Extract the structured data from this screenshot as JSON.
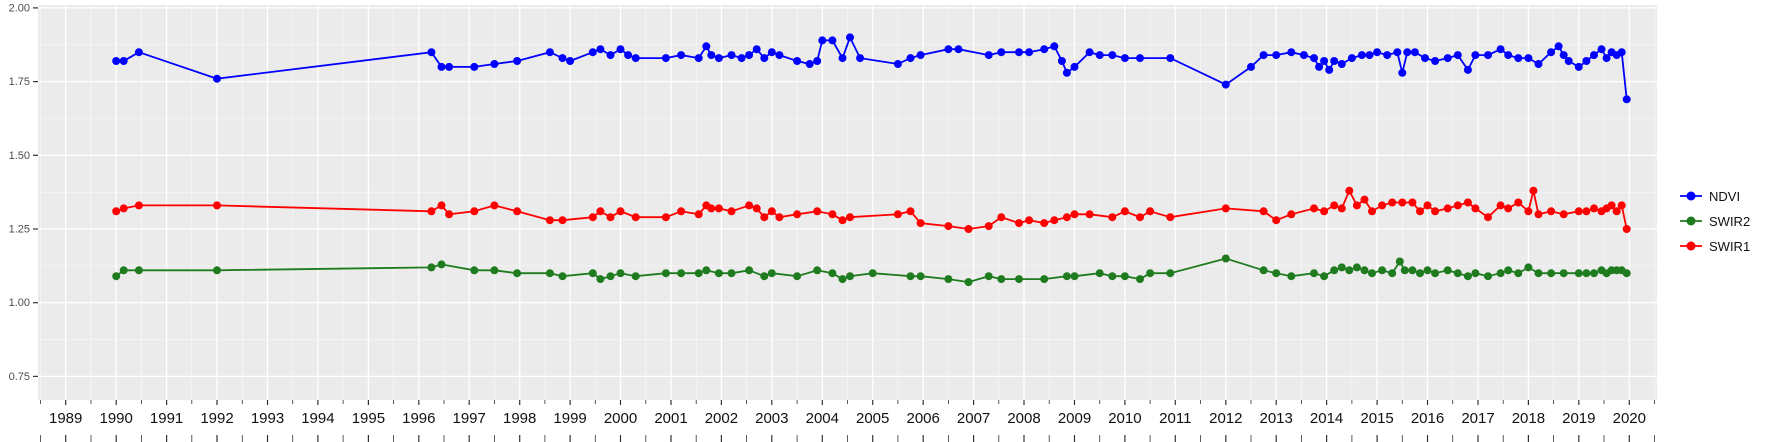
{
  "chart_data": {
    "type": "line",
    "title": "",
    "xlabel": "",
    "ylabel": "",
    "xlim": [
      1988.45,
      2020.55
    ],
    "ylim": [
      0.67,
      2.01
    ],
    "x_ticks": [
      1989,
      1990,
      1991,
      1992,
      1993,
      1994,
      1995,
      1996,
      1997,
      1998,
      1999,
      2000,
      2001,
      2002,
      2003,
      2004,
      2005,
      2006,
      2007,
      2008,
      2009,
      2010,
      2011,
      2012,
      2013,
      2014,
      2015,
      2016,
      2017,
      2018,
      2019,
      2020
    ],
    "y_ticks": [
      0.75,
      1.0,
      1.25,
      1.5,
      1.75,
      2.0
    ],
    "y_tick_labels": [
      "0.75",
      "1.00",
      "1.25",
      "1.50",
      "1.75",
      "2.00"
    ],
    "grid": true,
    "panel_bg": "#EBEBEB",
    "grid_color": "#FFFFFF",
    "legend_position": "right",
    "legend_items": [
      "NDVI",
      "SWIR2",
      "SWIR1"
    ],
    "series": [
      {
        "name": "NDVI",
        "color": "#0000FF",
        "points": [
          [
            1990.0,
            1.82
          ],
          [
            1990.15,
            1.82
          ],
          [
            1990.45,
            1.85
          ],
          [
            1992.0,
            1.76
          ],
          [
            1996.25,
            1.85
          ],
          [
            1996.45,
            1.8
          ],
          [
            1996.6,
            1.8
          ],
          [
            1997.1,
            1.8
          ],
          [
            1997.5,
            1.81
          ],
          [
            1997.95,
            1.82
          ],
          [
            1998.6,
            1.85
          ],
          [
            1998.85,
            1.83
          ],
          [
            1999.0,
            1.82
          ],
          [
            1999.45,
            1.85
          ],
          [
            1999.6,
            1.86
          ],
          [
            1999.8,
            1.84
          ],
          [
            2000.0,
            1.86
          ],
          [
            2000.15,
            1.84
          ],
          [
            2000.3,
            1.83
          ],
          [
            2000.9,
            1.83
          ],
          [
            2001.2,
            1.84
          ],
          [
            2001.55,
            1.83
          ],
          [
            2001.7,
            1.87
          ],
          [
            2001.8,
            1.84
          ],
          [
            2001.95,
            1.83
          ],
          [
            2002.2,
            1.84
          ],
          [
            2002.4,
            1.83
          ],
          [
            2002.55,
            1.84
          ],
          [
            2002.7,
            1.86
          ],
          [
            2002.85,
            1.83
          ],
          [
            2003.0,
            1.85
          ],
          [
            2003.15,
            1.84
          ],
          [
            2003.5,
            1.82
          ],
          [
            2003.75,
            1.81
          ],
          [
            2003.9,
            1.82
          ],
          [
            2004.0,
            1.89
          ],
          [
            2004.2,
            1.89
          ],
          [
            2004.4,
            1.83
          ],
          [
            2004.55,
            1.9
          ],
          [
            2004.75,
            1.83
          ],
          [
            2005.5,
            1.81
          ],
          [
            2005.75,
            1.83
          ],
          [
            2005.95,
            1.84
          ],
          [
            2006.5,
            1.86
          ],
          [
            2006.7,
            1.86
          ],
          [
            2007.3,
            1.84
          ],
          [
            2007.55,
            1.85
          ],
          [
            2007.9,
            1.85
          ],
          [
            2008.1,
            1.85
          ],
          [
            2008.4,
            1.86
          ],
          [
            2008.6,
            1.87
          ],
          [
            2008.75,
            1.82
          ],
          [
            2008.85,
            1.78
          ],
          [
            2009.0,
            1.8
          ],
          [
            2009.3,
            1.85
          ],
          [
            2009.5,
            1.84
          ],
          [
            2009.75,
            1.84
          ],
          [
            2010.0,
            1.83
          ],
          [
            2010.3,
            1.83
          ],
          [
            2010.9,
            1.83
          ],
          [
            2012.0,
            1.74
          ],
          [
            2012.5,
            1.8
          ],
          [
            2012.75,
            1.84
          ],
          [
            2013.0,
            1.84
          ],
          [
            2013.3,
            1.85
          ],
          [
            2013.55,
            1.84
          ],
          [
            2013.75,
            1.83
          ],
          [
            2013.85,
            1.8
          ],
          [
            2013.95,
            1.82
          ],
          [
            2014.05,
            1.79
          ],
          [
            2014.15,
            1.82
          ],
          [
            2014.3,
            1.81
          ],
          [
            2014.5,
            1.83
          ],
          [
            2014.7,
            1.84
          ],
          [
            2014.85,
            1.84
          ],
          [
            2015.0,
            1.85
          ],
          [
            2015.2,
            1.84
          ],
          [
            2015.4,
            1.85
          ],
          [
            2015.5,
            1.78
          ],
          [
            2015.6,
            1.85
          ],
          [
            2015.75,
            1.85
          ],
          [
            2015.95,
            1.83
          ],
          [
            2016.15,
            1.82
          ],
          [
            2016.4,
            1.83
          ],
          [
            2016.6,
            1.84
          ],
          [
            2016.8,
            1.79
          ],
          [
            2016.95,
            1.84
          ],
          [
            2017.2,
            1.84
          ],
          [
            2017.45,
            1.86
          ],
          [
            2017.6,
            1.84
          ],
          [
            2017.8,
            1.83
          ],
          [
            2018.0,
            1.83
          ],
          [
            2018.2,
            1.81
          ],
          [
            2018.45,
            1.85
          ],
          [
            2018.6,
            1.87
          ],
          [
            2018.7,
            1.84
          ],
          [
            2018.8,
            1.82
          ],
          [
            2019.0,
            1.8
          ],
          [
            2019.15,
            1.82
          ],
          [
            2019.3,
            1.84
          ],
          [
            2019.45,
            1.86
          ],
          [
            2019.55,
            1.83
          ],
          [
            2019.65,
            1.85
          ],
          [
            2019.75,
            1.84
          ],
          [
            2019.85,
            1.85
          ],
          [
            2019.95,
            1.69
          ]
        ]
      },
      {
        "name": "SWIR2",
        "color": "#1E7B1E",
        "points": [
          [
            1990.0,
            1.09
          ],
          [
            1990.15,
            1.11
          ],
          [
            1990.45,
            1.11
          ],
          [
            1992.0,
            1.11
          ],
          [
            1996.25,
            1.12
          ],
          [
            1996.45,
            1.13
          ],
          [
            1997.1,
            1.11
          ],
          [
            1997.5,
            1.11
          ],
          [
            1997.95,
            1.1
          ],
          [
            1998.6,
            1.1
          ],
          [
            1998.85,
            1.09
          ],
          [
            1999.45,
            1.1
          ],
          [
            1999.6,
            1.08
          ],
          [
            1999.8,
            1.09
          ],
          [
            2000.0,
            1.1
          ],
          [
            2000.3,
            1.09
          ],
          [
            2000.9,
            1.1
          ],
          [
            2001.2,
            1.1
          ],
          [
            2001.55,
            1.1
          ],
          [
            2001.7,
            1.11
          ],
          [
            2001.95,
            1.1
          ],
          [
            2002.2,
            1.1
          ],
          [
            2002.55,
            1.11
          ],
          [
            2002.85,
            1.09
          ],
          [
            2003.0,
            1.1
          ],
          [
            2003.5,
            1.09
          ],
          [
            2003.9,
            1.11
          ],
          [
            2004.2,
            1.1
          ],
          [
            2004.4,
            1.08
          ],
          [
            2004.55,
            1.09
          ],
          [
            2005.0,
            1.1
          ],
          [
            2005.75,
            1.09
          ],
          [
            2005.95,
            1.09
          ],
          [
            2006.5,
            1.08
          ],
          [
            2006.9,
            1.07
          ],
          [
            2007.3,
            1.09
          ],
          [
            2007.55,
            1.08
          ],
          [
            2007.9,
            1.08
          ],
          [
            2008.4,
            1.08
          ],
          [
            2008.85,
            1.09
          ],
          [
            2009.0,
            1.09
          ],
          [
            2009.5,
            1.1
          ],
          [
            2009.75,
            1.09
          ],
          [
            2010.0,
            1.09
          ],
          [
            2010.3,
            1.08
          ],
          [
            2010.5,
            1.1
          ],
          [
            2010.9,
            1.1
          ],
          [
            2012.0,
            1.15
          ],
          [
            2012.75,
            1.11
          ],
          [
            2013.0,
            1.1
          ],
          [
            2013.3,
            1.09
          ],
          [
            2013.75,
            1.1
          ],
          [
            2013.95,
            1.09
          ],
          [
            2014.15,
            1.11
          ],
          [
            2014.3,
            1.12
          ],
          [
            2014.45,
            1.11
          ],
          [
            2014.6,
            1.12
          ],
          [
            2014.75,
            1.11
          ],
          [
            2014.9,
            1.1
          ],
          [
            2015.1,
            1.11
          ],
          [
            2015.3,
            1.1
          ],
          [
            2015.45,
            1.14
          ],
          [
            2015.55,
            1.11
          ],
          [
            2015.7,
            1.11
          ],
          [
            2015.85,
            1.1
          ],
          [
            2016.0,
            1.11
          ],
          [
            2016.15,
            1.1
          ],
          [
            2016.4,
            1.11
          ],
          [
            2016.6,
            1.1
          ],
          [
            2016.8,
            1.09
          ],
          [
            2016.95,
            1.1
          ],
          [
            2017.2,
            1.09
          ],
          [
            2017.45,
            1.1
          ],
          [
            2017.6,
            1.11
          ],
          [
            2017.8,
            1.1
          ],
          [
            2018.0,
            1.12
          ],
          [
            2018.2,
            1.1
          ],
          [
            2018.45,
            1.1
          ],
          [
            2018.7,
            1.1
          ],
          [
            2019.0,
            1.1
          ],
          [
            2019.15,
            1.1
          ],
          [
            2019.3,
            1.1
          ],
          [
            2019.45,
            1.11
          ],
          [
            2019.55,
            1.1
          ],
          [
            2019.65,
            1.11
          ],
          [
            2019.75,
            1.11
          ],
          [
            2019.85,
            1.11
          ],
          [
            2019.95,
            1.1
          ]
        ]
      },
      {
        "name": "SWIR1",
        "color": "#FF0000",
        "points": [
          [
            1990.0,
            1.31
          ],
          [
            1990.15,
            1.32
          ],
          [
            1990.45,
            1.33
          ],
          [
            1992.0,
            1.33
          ],
          [
            1996.25,
            1.31
          ],
          [
            1996.45,
            1.33
          ],
          [
            1996.6,
            1.3
          ],
          [
            1997.1,
            1.31
          ],
          [
            1997.5,
            1.33
          ],
          [
            1997.95,
            1.31
          ],
          [
            1998.6,
            1.28
          ],
          [
            1998.85,
            1.28
          ],
          [
            1999.45,
            1.29
          ],
          [
            1999.6,
            1.31
          ],
          [
            1999.8,
            1.29
          ],
          [
            2000.0,
            1.31
          ],
          [
            2000.3,
            1.29
          ],
          [
            2000.9,
            1.29
          ],
          [
            2001.2,
            1.31
          ],
          [
            2001.55,
            1.3
          ],
          [
            2001.7,
            1.33
          ],
          [
            2001.8,
            1.32
          ],
          [
            2001.95,
            1.32
          ],
          [
            2002.2,
            1.31
          ],
          [
            2002.55,
            1.33
          ],
          [
            2002.7,
            1.32
          ],
          [
            2002.85,
            1.29
          ],
          [
            2003.0,
            1.31
          ],
          [
            2003.15,
            1.29
          ],
          [
            2003.5,
            1.3
          ],
          [
            2003.9,
            1.31
          ],
          [
            2004.2,
            1.3
          ],
          [
            2004.4,
            1.28
          ],
          [
            2004.55,
            1.29
          ],
          [
            2005.5,
            1.3
          ],
          [
            2005.75,
            1.31
          ],
          [
            2005.95,
            1.27
          ],
          [
            2006.5,
            1.26
          ],
          [
            2006.9,
            1.25
          ],
          [
            2007.3,
            1.26
          ],
          [
            2007.55,
            1.29
          ],
          [
            2007.9,
            1.27
          ],
          [
            2008.1,
            1.28
          ],
          [
            2008.4,
            1.27
          ],
          [
            2008.6,
            1.28
          ],
          [
            2008.85,
            1.29
          ],
          [
            2009.0,
            1.3
          ],
          [
            2009.3,
            1.3
          ],
          [
            2009.75,
            1.29
          ],
          [
            2010.0,
            1.31
          ],
          [
            2010.3,
            1.29
          ],
          [
            2010.5,
            1.31
          ],
          [
            2010.9,
            1.29
          ],
          [
            2012.0,
            1.32
          ],
          [
            2012.75,
            1.31
          ],
          [
            2013.0,
            1.28
          ],
          [
            2013.3,
            1.3
          ],
          [
            2013.75,
            1.32
          ],
          [
            2013.95,
            1.31
          ],
          [
            2014.15,
            1.33
          ],
          [
            2014.3,
            1.32
          ],
          [
            2014.45,
            1.38
          ],
          [
            2014.6,
            1.33
          ],
          [
            2014.75,
            1.35
          ],
          [
            2014.9,
            1.31
          ],
          [
            2015.1,
            1.33
          ],
          [
            2015.3,
            1.34
          ],
          [
            2015.5,
            1.34
          ],
          [
            2015.7,
            1.34
          ],
          [
            2015.85,
            1.31
          ],
          [
            2016.0,
            1.33
          ],
          [
            2016.15,
            1.31
          ],
          [
            2016.4,
            1.32
          ],
          [
            2016.6,
            1.33
          ],
          [
            2016.8,
            1.34
          ],
          [
            2016.95,
            1.32
          ],
          [
            2017.2,
            1.29
          ],
          [
            2017.45,
            1.33
          ],
          [
            2017.6,
            1.32
          ],
          [
            2017.8,
            1.34
          ],
          [
            2018.0,
            1.31
          ],
          [
            2018.1,
            1.38
          ],
          [
            2018.2,
            1.3
          ],
          [
            2018.45,
            1.31
          ],
          [
            2018.7,
            1.3
          ],
          [
            2019.0,
            1.31
          ],
          [
            2019.15,
            1.31
          ],
          [
            2019.3,
            1.32
          ],
          [
            2019.45,
            1.31
          ],
          [
            2019.55,
            1.32
          ],
          [
            2019.65,
            1.33
          ],
          [
            2019.75,
            1.31
          ],
          [
            2019.85,
            1.33
          ],
          [
            2019.95,
            1.25
          ]
        ]
      }
    ]
  },
  "axis_style": {
    "x_label_color": "#111111",
    "y_label_color": "#4d4d4d",
    "tick_color": "#333333"
  }
}
